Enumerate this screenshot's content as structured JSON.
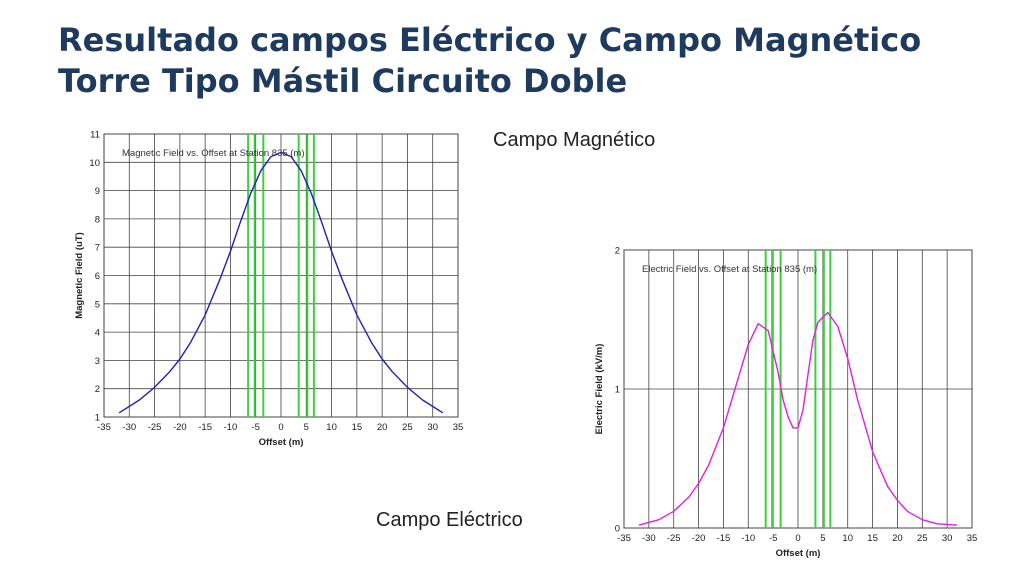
{
  "slide": {
    "title": "Resultado campos Eléctrico y Campo Magnético Torre Tipo Mástil Circuito Doble",
    "caption_magnetic": "Campo Magnético",
    "caption_electric": "Campo Eléctrico"
  },
  "colors": {
    "title": "#1f3a5f",
    "magnetic_curve": "#1c22b8",
    "electric_curve": "#e020e0",
    "conductor_lines": "#3ecf3e",
    "grid": "#444444"
  },
  "chart_data": [
    {
      "type": "line",
      "title": "Magnetic Field vs. Offset at Station 835 (m)",
      "xlabel": "Offset (m)",
      "ylabel": "Magnetic Field (uT)",
      "xlim": [
        -35,
        35
      ],
      "ylim": [
        1,
        11
      ],
      "xticks": [
        -35,
        -30,
        -25,
        -20,
        -15,
        -10,
        -5,
        0,
        5,
        10,
        15,
        20,
        25,
        30,
        35
      ],
      "yticks": [
        1,
        2,
        3,
        4,
        5,
        6,
        7,
        8,
        9,
        10,
        11
      ],
      "grid": true,
      "conductor_offsets": [
        -6.5,
        -5.2,
        -3.5,
        3.5,
        5.2,
        6.5
      ],
      "series": [
        {
          "x": [
            -32,
            -28,
            -25,
            -22,
            -20,
            -18,
            -15,
            -12,
            -10,
            -8,
            -6,
            -4,
            -2,
            0,
            2,
            4,
            6,
            8,
            10,
            12,
            15,
            18,
            20,
            22,
            25,
            28,
            32
          ],
          "values": [
            1.15,
            1.6,
            2.05,
            2.6,
            3.05,
            3.6,
            4.6,
            5.9,
            6.85,
            7.9,
            8.9,
            9.7,
            10.2,
            10.35,
            10.2,
            9.7,
            8.9,
            7.9,
            6.85,
            5.9,
            4.6,
            3.6,
            3.05,
            2.6,
            2.05,
            1.6,
            1.15
          ]
        }
      ]
    },
    {
      "type": "line",
      "title": "Electric Field vs. Offset at Station 835 (m)",
      "xlabel": "Offset (m)",
      "ylabel": "Electric Field (kV/m)",
      "xlim": [
        -35,
        35
      ],
      "ylim": [
        0,
        2
      ],
      "xticks": [
        -35,
        -30,
        -25,
        -20,
        -15,
        -10,
        -5,
        0,
        5,
        10,
        15,
        20,
        25,
        30,
        35
      ],
      "yticks": [
        0,
        1,
        2
      ],
      "grid": true,
      "conductor_offsets": [
        -6.5,
        -5.2,
        -3.5,
        3.5,
        5.2,
        6.5
      ],
      "series": [
        {
          "x": [
            -32,
            -28,
            -25,
            -22,
            -20,
            -18,
            -15,
            -12,
            -10,
            -8,
            -6,
            -4,
            -3,
            -2,
            -1,
            0,
            1,
            2,
            3,
            4,
            6,
            8,
            10,
            12,
            15,
            18,
            20,
            22,
            25,
            28,
            32
          ],
          "values": [
            0.02,
            0.06,
            0.12,
            0.22,
            0.32,
            0.45,
            0.72,
            1.08,
            1.32,
            1.47,
            1.42,
            1.12,
            0.92,
            0.8,
            0.72,
            0.72,
            0.85,
            1.1,
            1.35,
            1.48,
            1.55,
            1.45,
            1.22,
            0.92,
            0.55,
            0.3,
            0.2,
            0.12,
            0.06,
            0.03,
            0.02
          ]
        }
      ]
    }
  ]
}
